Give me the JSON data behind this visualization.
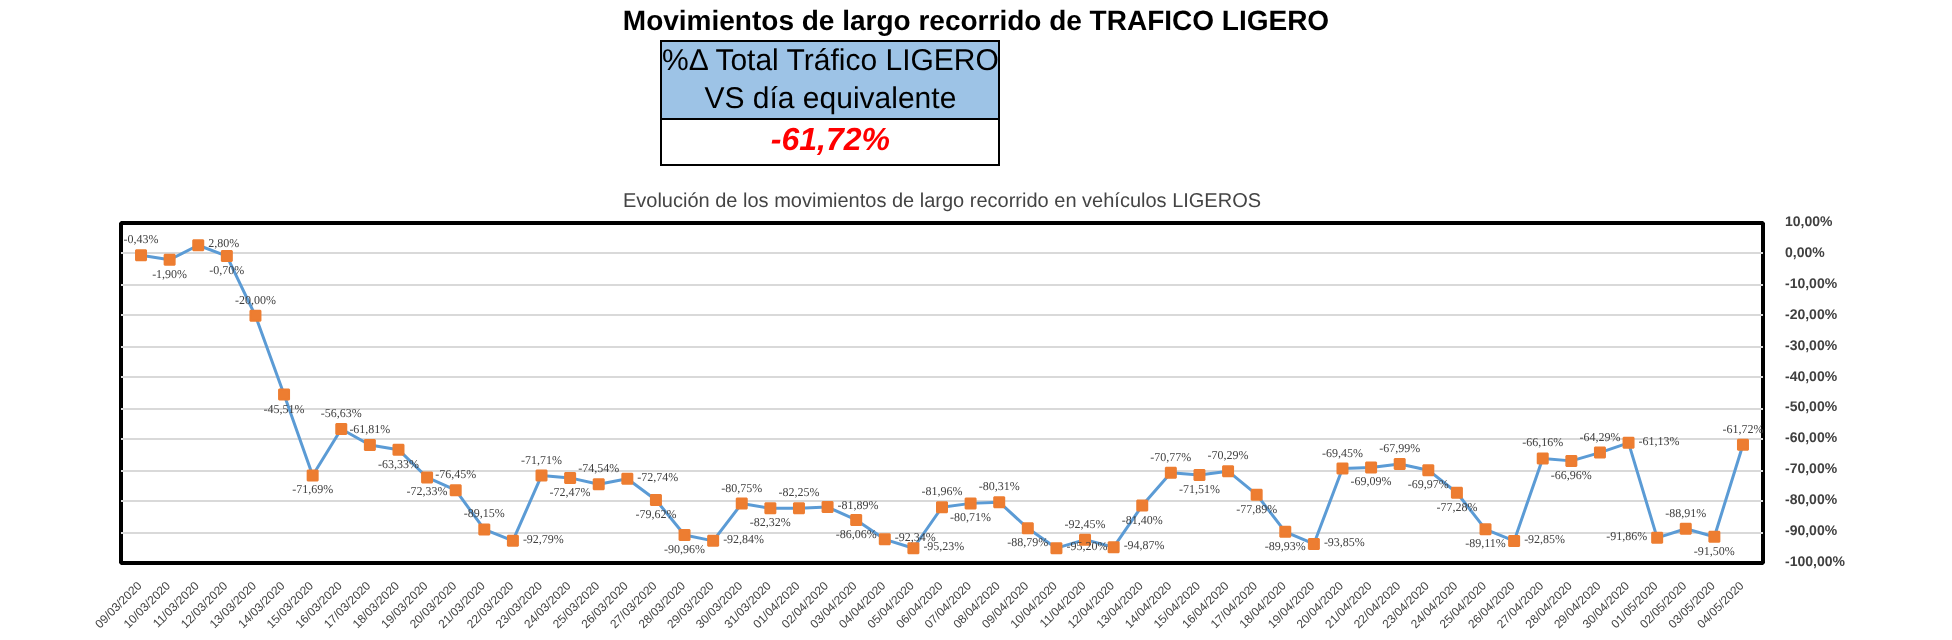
{
  "chart_data": {
    "type": "line",
    "title": "Movimientos de largo recorrido de TRAFICO LIGERO",
    "subtitle": "Evolución de los movimientos de largo recorrido en vehículos LIGEROS",
    "annotations": [
      "%Δ Total Tráfico LIGERO",
      "VS día equivalente",
      "-61,72%"
    ],
    "categories": [
      "09/03/2020",
      "10/03/2020",
      "11/03/2020",
      "12/03/2020",
      "13/03/2020",
      "14/03/2020",
      "15/03/2020",
      "16/03/2020",
      "17/03/2020",
      "18/03/2020",
      "19/03/2020",
      "20/03/2020",
      "21/03/2020",
      "22/03/2020",
      "23/03/2020",
      "24/03/2020",
      "25/03/2020",
      "26/03/2020",
      "27/03/2020",
      "28/03/2020",
      "29/03/2020",
      "30/03/2020",
      "31/03/2020",
      "01/04/2020",
      "02/04/2020",
      "03/04/2020",
      "04/04/2020",
      "05/04/2020",
      "06/04/2020",
      "07/04/2020",
      "08/04/2020",
      "09/04/2020",
      "10/04/2020",
      "11/04/2020",
      "12/04/2020",
      "13/04/2020",
      "14/04/2020",
      "15/04/2020",
      "16/04/2020",
      "17/04/2020",
      "18/04/2020",
      "19/04/2020",
      "20/04/2020",
      "21/04/2020",
      "22/04/2020",
      "23/04/2020",
      "24/04/2020",
      "25/04/2020",
      "26/04/2020",
      "27/04/2020",
      "28/04/2020",
      "29/04/2020",
      "30/04/2020",
      "01/05/2020",
      "02/05/2020",
      "03/05/2020",
      "04/05/2020"
    ],
    "series": [
      {
        "color": "#5b9bd5",
        "colors": [
          "#ed7d31",
          "#ed7d31",
          "#ed7d31",
          "#ed7d31",
          "#ed7d31",
          "#ed7d31",
          "#ed7d31",
          "#ed7d31",
          "#ed7d31",
          "#ed7d31",
          "#ed7d31",
          "#ed7d31",
          "#ed7d31",
          "#ed7d31",
          "#ed7d31",
          "#ed7d31",
          "#ed7d31",
          "#ed7d31",
          "#ed7d31",
          "#ed7d31",
          "#ed7d31",
          "#ed7d31",
          "#ed7d31",
          "#ed7d31",
          "#ed7d31",
          "#ed7d31",
          "#ed7d31",
          "#ed7d31",
          "#ed7d31",
          "#ed7d31",
          "#ed7d31",
          "#ed7d31",
          "#ed7d31",
          "#ed7d31",
          "#ed7d31",
          "#ed7d31",
          "#ed7d31",
          "#ed7d31",
          "#ed7d31",
          "#ed7d31",
          "#ed7d31",
          "#ed7d31",
          "#ed7d31",
          "#ed7d31",
          "#ed7d31",
          "#ed7d31",
          "#ed7d31",
          "#ed7d31",
          "#ed7d31",
          "#ed7d31",
          "#ed7d31",
          "#ed7d31",
          "#ed7d31",
          "#ed7d31",
          "#ed7d31",
          "#ed7d31",
          "#ed7d31"
        ],
        "values": [
          -0.43,
          -1.9,
          2.8,
          -0.7,
          -20.0,
          -45.51,
          -71.69,
          -56.63,
          -61.81,
          -63.33,
          -72.33,
          -76.45,
          -89.15,
          -92.79,
          -71.71,
          -72.47,
          -74.54,
          -72.74,
          -79.62,
          -90.96,
          -92.84,
          -80.75,
          -82.32,
          -82.25,
          -81.89,
          -86.06,
          -92.34,
          -95.23,
          -81.96,
          -80.71,
          -80.31,
          -88.79,
          -95.2,
          -92.45,
          -94.87,
          -81.4,
          -70.77,
          -71.51,
          -70.29,
          -77.89,
          -89.93,
          -93.85,
          -69.45,
          -69.09,
          -67.99,
          -69.97,
          -77.28,
          -89.11,
          -92.85,
          -66.16,
          -66.96,
          -64.29,
          -61.13,
          -91.86,
          -88.91,
          -91.5,
          -61.72
        ],
        "value_labels": [
          "-0,43%",
          "-1,90%",
          "2,80%",
          "-0,70%",
          "-20,00%",
          "-45,51%",
          "-71,69%",
          "-56,63%",
          "-61,81%",
          "-63,33%",
          "-72,33%",
          "-76,45%",
          "-89,15%",
          "-92,79%",
          "-71,71%",
          "-72,47%",
          "-74,54%",
          "-72,74%",
          "-79,62%",
          "-90,96%",
          "-92,84%",
          "-80,75%",
          "-82,32%",
          "-82,25%",
          "-81,89%",
          "-86,06%",
          "-92,34%",
          "-95,23%",
          "-81,96%",
          "-80,71%",
          "-80,31%",
          "-88,79%",
          "-95,20%",
          "-92,45%",
          "-94,87%",
          "-81,40%",
          "-70,77%",
          "-71,51%",
          "-70,29%",
          "-77,89%",
          "-89,93%",
          "-93,85%",
          "-69,45%",
          "-69,09%",
          "-67,99%",
          "-69,97%",
          "-77,28%",
          "-89,11%",
          "-92,85%",
          "-66,16%",
          "-66,96%",
          "-64,29%",
          "-61,13%",
          "-91,86%",
          "-88,91%",
          "-91,50%",
          "-61,72%"
        ]
      }
    ],
    "ylim": [
      -100,
      10
    ],
    "yticks": [
      {
        "value": 10,
        "label": "10,00%"
      },
      {
        "value": 0,
        "label": "0,00%"
      },
      {
        "value": -10,
        "label": "-10,00%"
      },
      {
        "value": -20,
        "label": "-20,00%"
      },
      {
        "value": -30,
        "label": "-30,00%"
      },
      {
        "value": -40,
        "label": "-40,00%"
      },
      {
        "value": -50,
        "label": "-50,00%"
      },
      {
        "value": -60,
        "label": "-60,00%"
      },
      {
        "value": -70,
        "label": "-70,00%"
      },
      {
        "value": -80,
        "label": "-80,00%"
      },
      {
        "value": -90,
        "label": "-90,00%"
      },
      {
        "value": -100,
        "label": "-100,00%"
      }
    ],
    "grid": "y",
    "marker": "square",
    "line_style": "solid"
  }
}
